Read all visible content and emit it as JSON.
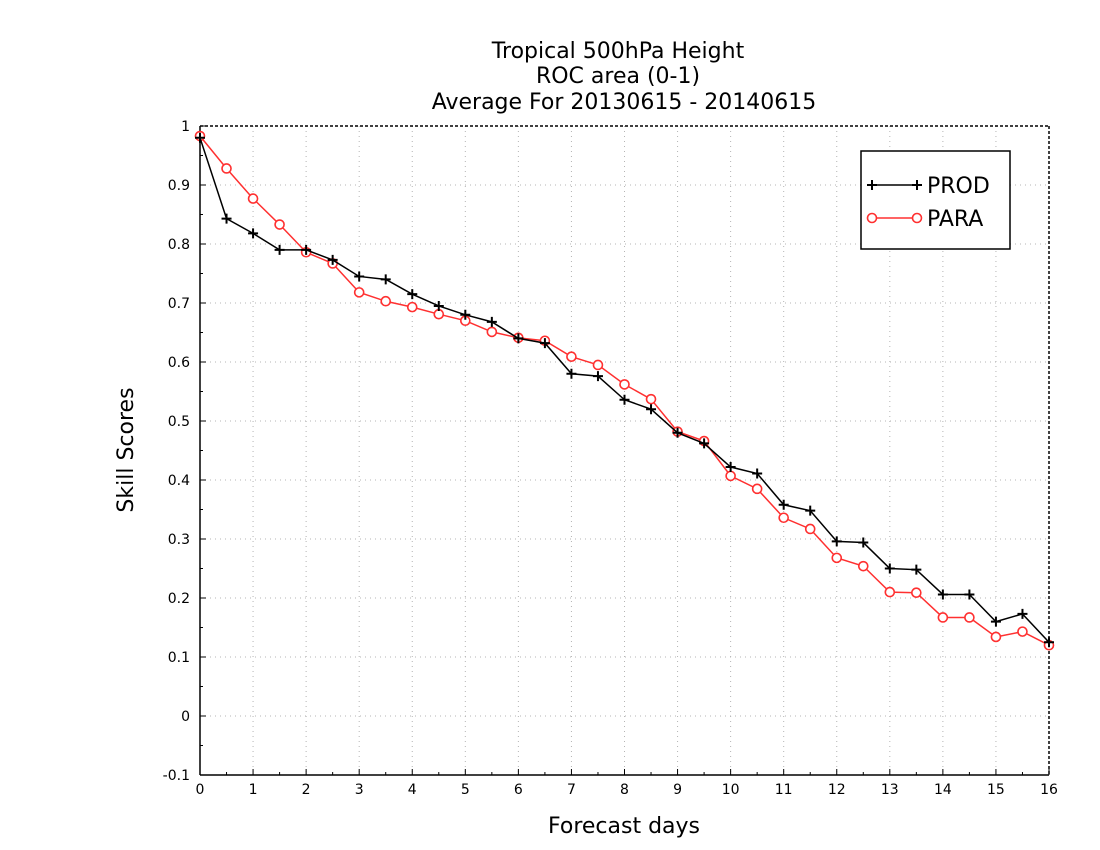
{
  "chart_data": {
    "type": "line",
    "title": [
      "Tropical 500hPa Height",
      "ROC area (0-1)",
      "Average For 20130615 - 20140615"
    ],
    "xlabel": "Forecast days",
    "ylabel": "Skill Scores",
    "xlim": [
      0,
      16
    ],
    "ylim": [
      -0.1,
      1
    ],
    "x_ticks": [
      0,
      1,
      2,
      3,
      4,
      5,
      6,
      7,
      8,
      9,
      10,
      11,
      12,
      13,
      14,
      15,
      16
    ],
    "y_ticks": [
      -0.1,
      0,
      0.1,
      0.2,
      0.3,
      0.4,
      0.5,
      0.6,
      0.7,
      0.8,
      0.9,
      1
    ],
    "y_tick_labels": [
      "-0.1",
      "0",
      "0.1",
      "0.2",
      "0.3",
      "0.4",
      "0.5",
      "0.6",
      "0.7",
      "0.8",
      "0.9",
      "1"
    ],
    "grid": true,
    "legend_position": "top-right",
    "x": [
      0,
      0.5,
      1,
      1.5,
      2,
      2.5,
      3,
      3.5,
      4,
      4.5,
      5,
      5.5,
      6,
      6.5,
      7,
      7.5,
      8,
      8.5,
      9,
      9.5,
      10,
      10.5,
      11,
      11.5,
      12,
      12.5,
      13,
      13.5,
      14,
      14.5,
      15,
      15.5,
      16
    ],
    "series": [
      {
        "name": "PROD",
        "color": "#000000",
        "marker": "plus",
        "values": [
          0.98,
          0.843,
          0.818,
          0.79,
          0.79,
          0.773,
          0.745,
          0.74,
          0.715,
          0.695,
          0.68,
          0.668,
          0.64,
          0.632,
          0.58,
          0.576,
          0.536,
          0.52,
          0.48,
          0.462,
          0.422,
          0.411,
          0.358,
          0.348,
          0.296,
          0.294,
          0.25,
          0.248,
          0.206,
          0.206,
          0.16,
          0.173,
          0.125
        ]
      },
      {
        "name": "PARA",
        "color": "#ff3030",
        "marker": "circle",
        "values": [
          0.983,
          0.928,
          0.877,
          0.833,
          0.786,
          0.767,
          0.718,
          0.703,
          0.693,
          0.681,
          0.67,
          0.651,
          0.641,
          0.636,
          0.609,
          0.595,
          0.562,
          0.537,
          0.482,
          0.466,
          0.407,
          0.385,
          0.336,
          0.317,
          0.268,
          0.254,
          0.21,
          0.209,
          0.167,
          0.167,
          0.134,
          0.143,
          0.12
        ]
      }
    ]
  }
}
